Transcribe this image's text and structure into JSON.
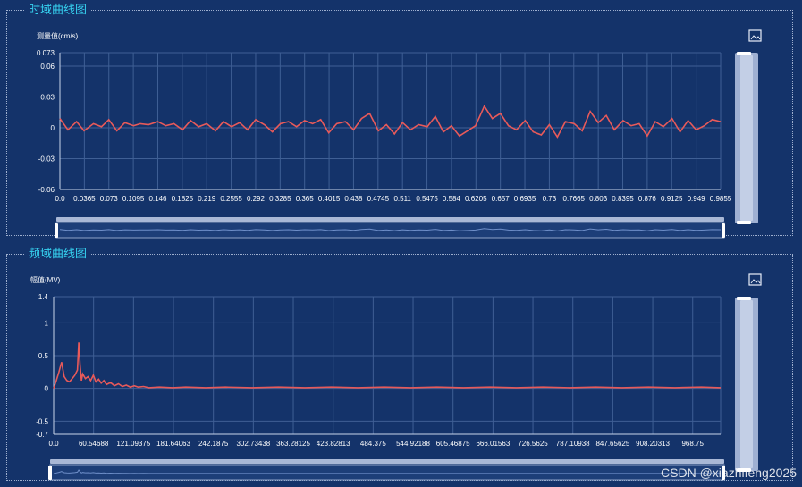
{
  "panels": {
    "time_title": "时域曲线图",
    "freq_title": "频域曲线图"
  },
  "watermark": "CSDN @xiazhifeng2025",
  "icons": {
    "save": "save-as-image-icon"
  },
  "colors": {
    "background": "#14336a",
    "line": "#e85a5a",
    "grid": "#3f5f95",
    "text": "#ffffff",
    "title": "#36d2f0"
  },
  "chart_data": [
    {
      "type": "line",
      "title": "时域曲线图",
      "ylabel": "测量值(cm/s)",
      "xlabel": "",
      "ylim": [
        -0.06,
        0.073
      ],
      "xlim": [
        0,
        0.9855
      ],
      "grid": true,
      "y_ticks": [
        "0.073",
        "0.06",
        "0.03",
        "0",
        "-0.03",
        "-0.06"
      ],
      "x_ticks": [
        "0.0",
        "0.0365",
        "0.073",
        "0.1095",
        "0.146",
        "0.1825",
        "0.219",
        "0.2555",
        "0.292",
        "0.3285",
        "0.365",
        "0.4015",
        "0.438",
        "0.4745",
        "0.511",
        "0.5475",
        "0.584",
        "0.6205",
        "0.657",
        "0.6935",
        "0.73",
        "0.7665",
        "0.803",
        "0.8395",
        "0.876",
        "0.9125",
        "0.949",
        "0.9855"
      ],
      "series": [
        {
          "x": [
            0,
            0.012,
            0.025,
            0.036,
            0.05,
            0.062,
            0.073,
            0.085,
            0.097,
            0.11,
            0.12,
            0.132,
            0.146,
            0.158,
            0.17,
            0.183,
            0.195,
            0.207,
            0.219,
            0.232,
            0.244,
            0.256,
            0.268,
            0.28,
            0.292,
            0.305,
            0.317,
            0.329,
            0.341,
            0.353,
            0.365,
            0.377,
            0.389,
            0.401,
            0.413,
            0.426,
            0.438,
            0.45,
            0.462,
            0.475,
            0.487,
            0.499,
            0.511,
            0.523,
            0.535,
            0.548,
            0.56,
            0.572,
            0.584,
            0.596,
            0.608,
            0.62,
            0.633,
            0.645,
            0.657,
            0.669,
            0.681,
            0.694,
            0.706,
            0.718,
            0.73,
            0.742,
            0.754,
            0.767,
            0.779,
            0.791,
            0.803,
            0.815,
            0.827,
            0.84,
            0.852,
            0.864,
            0.876,
            0.888,
            0.9,
            0.913,
            0.925,
            0.937,
            0.949,
            0.961,
            0.973,
            0.9855
          ],
          "y": [
            0.009,
            -0.002,
            0.006,
            -0.003,
            0.004,
            0.001,
            0.008,
            -0.003,
            0.005,
            0.002,
            0.004,
            0.003,
            0.006,
            0.002,
            0.004,
            -0.002,
            0.007,
            0.001,
            0.004,
            -0.003,
            0.006,
            0.001,
            0.005,
            -0.002,
            0.008,
            0.003,
            -0.004,
            0.004,
            0.006,
            0.001,
            0.007,
            0.004,
            0.008,
            -0.005,
            0.004,
            0.006,
            -0.002,
            0.009,
            0.014,
            -0.003,
            0.003,
            -0.006,
            0.005,
            -0.002,
            0.003,
            0.001,
            0.011,
            -0.004,
            0.002,
            -0.008,
            -0.003,
            0.002,
            0.021,
            0.009,
            0.014,
            0.002,
            -0.002,
            0.007,
            -0.004,
            -0.007,
            0.003,
            -0.009,
            0.006,
            0.004,
            -0.003,
            0.016,
            0.005,
            0.012,
            -0.002,
            0.007,
            0.002,
            0.004,
            -0.008,
            0.006,
            0.001,
            0.009,
            -0.004,
            0.007,
            -0.002,
            0.002,
            0.008,
            0.006
          ]
        }
      ]
    },
    {
      "type": "line",
      "title": "频域曲线图",
      "ylabel": "幅值(MV)",
      "xlabel": "",
      "ylim": [
        -0.7,
        1.4
      ],
      "xlim": [
        0,
        1009
      ],
      "grid": true,
      "y_ticks": [
        "1.4",
        "1",
        "0.5",
        "0",
        "-0.5",
        "-0.7"
      ],
      "x_ticks": [
        "0.0",
        "60.54688",
        "121.09375",
        "181.64063",
        "242.1875",
        "302.73438",
        "363.28125",
        "423.82813",
        "484.375",
        "544.92188",
        "605.46875",
        "666.01563",
        "726.5625",
        "787.10938",
        "847.65625",
        "908.20313",
        "968.75"
      ],
      "series": [
        {
          "x": [
            0,
            4,
            8,
            12,
            16,
            20,
            24,
            28,
            32,
            36,
            38,
            40,
            42,
            44,
            48,
            52,
            56,
            60,
            64,
            68,
            72,
            76,
            80,
            86,
            92,
            98,
            104,
            110,
            116,
            122,
            128,
            136,
            144,
            160,
            180,
            200,
            230,
            260,
            300,
            340,
            380,
            420,
            460,
            500,
            540,
            580,
            620,
            660,
            700,
            740,
            780,
            820,
            860,
            900,
            940,
            980,
            1009
          ],
          "y": [
            0,
            0.12,
            0.25,
            0.4,
            0.18,
            0.12,
            0.1,
            0.15,
            0.2,
            0.28,
            0.7,
            0.35,
            0.12,
            0.22,
            0.15,
            0.18,
            0.12,
            0.2,
            0.1,
            0.14,
            0.08,
            0.12,
            0.06,
            0.09,
            0.04,
            0.07,
            0.03,
            0.05,
            0.02,
            0.04,
            0.02,
            0.03,
            0.01,
            0.02,
            0.01,
            0.02,
            0.01,
            0.02,
            0.01,
            0.02,
            0.01,
            0.02,
            0.01,
            0.02,
            0.01,
            0.02,
            0.01,
            0.02,
            0.01,
            0.02,
            0.01,
            0.02,
            0.01,
            0.02,
            0.01,
            0.02,
            0.01
          ]
        }
      ]
    }
  ]
}
